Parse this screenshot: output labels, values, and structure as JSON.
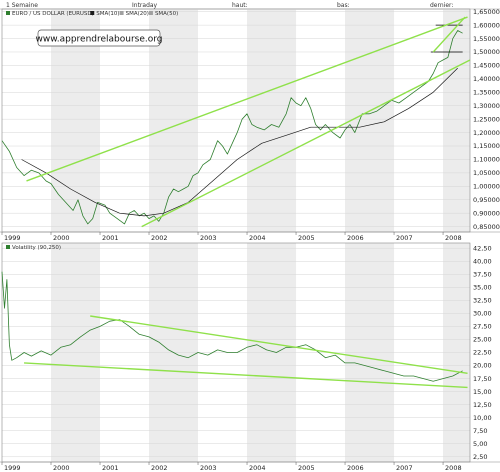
{
  "header": {
    "period": "1 Semaine",
    "mode": "Intraday",
    "haut": "haut:",
    "bas": "bas:",
    "dernier": "dernier:"
  },
  "watermark": "www.apprendrelabourse.org",
  "colors": {
    "price": "#2f7f2f",
    "sma_dark": "#1a1a1a",
    "sma_light": "#a0a0a0",
    "trendline": "#8fe14a",
    "alt_band": "#ececec"
  },
  "chart_data": [
    {
      "type": "line",
      "legend": [
        "EURO / US DOLLAR (EURUSD)",
        "SMA(10)",
        "SMA(20)",
        "SMA(50)"
      ],
      "x_tick_labels": [
        "1999",
        "2000",
        "2001",
        "2002",
        "2003",
        "2004",
        "2005",
        "2006",
        "2007",
        "2008"
      ],
      "y_tick_labels": [
        "1,65000",
        "1,60000",
        "1,55000",
        "1,50000",
        "1,45000",
        "1,40000",
        "1,35000",
        "1,30000",
        "1,25000",
        "1,20000",
        "1,15000",
        "1,10000",
        "1,05000",
        "1,00000",
        "0,95000",
        "0,90000",
        "0,85000"
      ],
      "xlim": [
        1999.0,
        2008.55
      ],
      "ylim": [
        0.83,
        1.66
      ],
      "series": [
        {
          "name": "EURO / US DOLLAR (EURUSD)",
          "x": [
            1999.0,
            1999.15,
            1999.3,
            1999.45,
            1999.6,
            1999.75,
            1999.9,
            2000.0,
            2000.15,
            2000.3,
            2000.45,
            2000.55,
            2000.65,
            2000.75,
            2000.85,
            2000.95,
            2001.1,
            2001.2,
            2001.35,
            2001.5,
            2001.6,
            2001.7,
            2001.8,
            2001.9,
            2002.0,
            2002.1,
            2002.2,
            2002.3,
            2002.4,
            2002.5,
            2002.6,
            2002.7,
            2002.8,
            2002.9,
            2003.0,
            2003.1,
            2003.25,
            2003.4,
            2003.5,
            2003.6,
            2003.7,
            2003.8,
            2003.9,
            2004.0,
            2004.1,
            2004.2,
            2004.35,
            2004.5,
            2004.65,
            2004.8,
            2004.9,
            2005.0,
            2005.1,
            2005.2,
            2005.3,
            2005.4,
            2005.5,
            2005.6,
            2005.75,
            2005.9,
            2006.0,
            2006.1,
            2006.2,
            2006.35,
            2006.5,
            2006.65,
            2006.8,
            2006.95,
            2007.1,
            2007.25,
            2007.4,
            2007.55,
            2007.7,
            2007.8,
            2007.9,
            2008.0,
            2008.1,
            2008.2,
            2008.3,
            2008.4
          ],
          "values": [
            1.17,
            1.13,
            1.07,
            1.04,
            1.06,
            1.05,
            1.02,
            1.01,
            0.97,
            0.94,
            0.91,
            0.95,
            0.89,
            0.86,
            0.88,
            0.94,
            0.93,
            0.9,
            0.88,
            0.86,
            0.9,
            0.91,
            0.89,
            0.9,
            0.88,
            0.89,
            0.87,
            0.9,
            0.96,
            0.99,
            0.98,
            0.99,
            1.0,
            1.04,
            1.05,
            1.08,
            1.1,
            1.17,
            1.15,
            1.12,
            1.16,
            1.2,
            1.25,
            1.27,
            1.23,
            1.22,
            1.21,
            1.23,
            1.22,
            1.27,
            1.33,
            1.31,
            1.3,
            1.33,
            1.29,
            1.23,
            1.21,
            1.23,
            1.2,
            1.18,
            1.21,
            1.23,
            1.2,
            1.27,
            1.27,
            1.28,
            1.3,
            1.32,
            1.31,
            1.33,
            1.35,
            1.37,
            1.39,
            1.42,
            1.46,
            1.47,
            1.48,
            1.55,
            1.58,
            1.57
          ]
        },
        {
          "name": "SMA(50)",
          "x": [
            1999.4,
            1999.9,
            2000.4,
            2000.9,
            2001.4,
            2001.9,
            2002.3,
            2002.8,
            2003.3,
            2003.8,
            2004.3,
            2004.8,
            2005.3,
            2005.8,
            2006.3,
            2006.8,
            2007.3,
            2007.8,
            2008.3
          ],
          "values": [
            1.1,
            1.05,
            0.99,
            0.94,
            0.9,
            0.89,
            0.9,
            0.94,
            1.02,
            1.1,
            1.16,
            1.19,
            1.22,
            1.22,
            1.22,
            1.24,
            1.29,
            1.35,
            1.44
          ]
        }
      ],
      "trendlines": [
        {
          "x": [
            1999.5,
            2008.5
          ],
          "values": [
            1.02,
            1.63
          ]
        },
        {
          "x": [
            2001.85,
            2008.55
          ],
          "values": [
            0.85,
            1.47
          ]
        },
        {
          "x": [
            2007.8,
            2008.45
          ],
          "values": [
            1.5,
            1.63
          ]
        }
      ],
      "levels": [
        {
          "x": [
            2007.85,
            2008.4
          ],
          "value": 1.6
        },
        {
          "x": [
            2007.75,
            2008.4
          ],
          "value": 1.5
        }
      ]
    },
    {
      "type": "line",
      "legend": [
        "Volatility (90,250)"
      ],
      "x_tick_labels": [
        "1999",
        "2000",
        "2001",
        "2002",
        "2003",
        "2004",
        "2005",
        "2006",
        "2007",
        "2008"
      ],
      "y_tick_labels": [
        "42,50",
        "40,00",
        "37,50",
        "35,00",
        "32,50",
        "30,00",
        "27,50",
        "25,00",
        "22,50",
        "20,00",
        "17,50",
        "15,00",
        "12,50",
        "10,00",
        "7,50",
        "5,00",
        "2,50"
      ],
      "xlim": [
        1999.0,
        2008.55
      ],
      "ylim": [
        1.5,
        43.5
      ],
      "series": [
        {
          "name": "Volatility (90,250)",
          "x": [
            1999.0,
            1999.05,
            1999.1,
            1999.15,
            1999.2,
            1999.3,
            1999.45,
            1999.6,
            1999.8,
            2000.0,
            2000.2,
            2000.4,
            2000.6,
            2000.8,
            2001.0,
            2001.2,
            2001.4,
            2001.6,
            2001.8,
            2002.0,
            2002.2,
            2002.4,
            2002.6,
            2002.8,
            2003.0,
            2003.2,
            2003.4,
            2003.6,
            2003.8,
            2004.0,
            2004.2,
            2004.4,
            2004.6,
            2004.8,
            2005.0,
            2005.2,
            2005.4,
            2005.6,
            2005.8,
            2006.0,
            2006.2,
            2006.4,
            2006.6,
            2006.8,
            2007.0,
            2007.2,
            2007.4,
            2007.6,
            2007.8,
            2008.0,
            2008.2,
            2008.4
          ],
          "values": [
            38.0,
            31.0,
            36.5,
            24.0,
            21.0,
            21.5,
            22.5,
            21.8,
            22.8,
            22.0,
            23.5,
            24.0,
            25.5,
            26.8,
            27.5,
            28.5,
            28.8,
            27.5,
            26.0,
            25.5,
            24.5,
            23.0,
            22.0,
            21.5,
            22.5,
            22.0,
            23.0,
            22.5,
            22.5,
            23.5,
            24.0,
            23.0,
            22.5,
            23.5,
            23.5,
            24.0,
            23.0,
            21.5,
            22.0,
            20.5,
            20.5,
            20.0,
            19.5,
            19.0,
            18.5,
            18.0,
            18.0,
            17.5,
            17.0,
            17.5,
            18.0,
            19.0
          ]
        }
      ],
      "trendlines": [
        {
          "x": [
            2000.8,
            2008.5
          ],
          "values": [
            29.5,
            18.5
          ]
        },
        {
          "x": [
            1999.45,
            2008.5
          ],
          "values": [
            20.5,
            15.8
          ]
        }
      ]
    }
  ]
}
